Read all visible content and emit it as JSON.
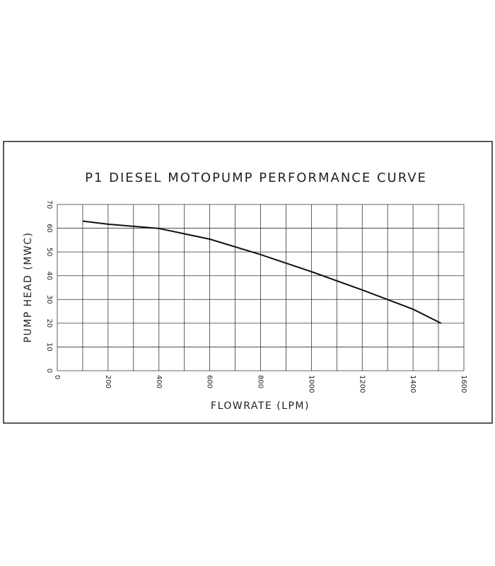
{
  "chart_data": {
    "type": "line",
    "title": "P1 DIESEL MOTOPUMP PERFORMANCE CURVE",
    "x_label": "FLOWRATE (LPM)",
    "y_label": "PUMP HEAD (MWC)",
    "x": [
      100,
      200,
      400,
      600,
      800,
      1000,
      1200,
      1400,
      1510
    ],
    "series": [
      {
        "color": "#111111",
        "values": [
          63,
          61.7,
          59.9,
          55.4,
          48.9,
          41.7,
          34,
          25.9,
          20
        ]
      }
    ],
    "xlim": [
      0,
      1600
    ],
    "xticks": [
      0,
      200,
      400,
      600,
      800,
      1000,
      1200,
      1400,
      1600
    ],
    "xgrid": [
      0,
      100,
      200,
      300,
      400,
      500,
      600,
      700,
      800,
      900,
      1000,
      1100,
      1200,
      1300,
      1400,
      1500,
      1600
    ],
    "ylim": [
      0,
      70
    ],
    "yticks": [
      0,
      10,
      20,
      30,
      40,
      50,
      60,
      70
    ],
    "grid": true
  }
}
